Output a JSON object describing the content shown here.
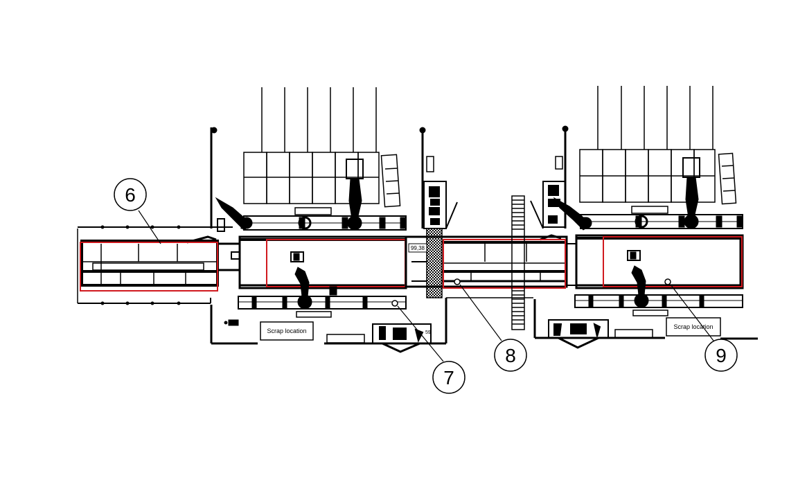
{
  "callouts": {
    "c6": "6",
    "c7": "7",
    "c8": "8",
    "c9": "9"
  },
  "labels": {
    "scrap_left": "Scrap location",
    "scrap_right": "Scrap location",
    "dimension": "99,38",
    "small_tag": "59"
  },
  "colors": {
    "line": "#000000",
    "highlight": "#d0191e",
    "background": "#ffffff"
  }
}
